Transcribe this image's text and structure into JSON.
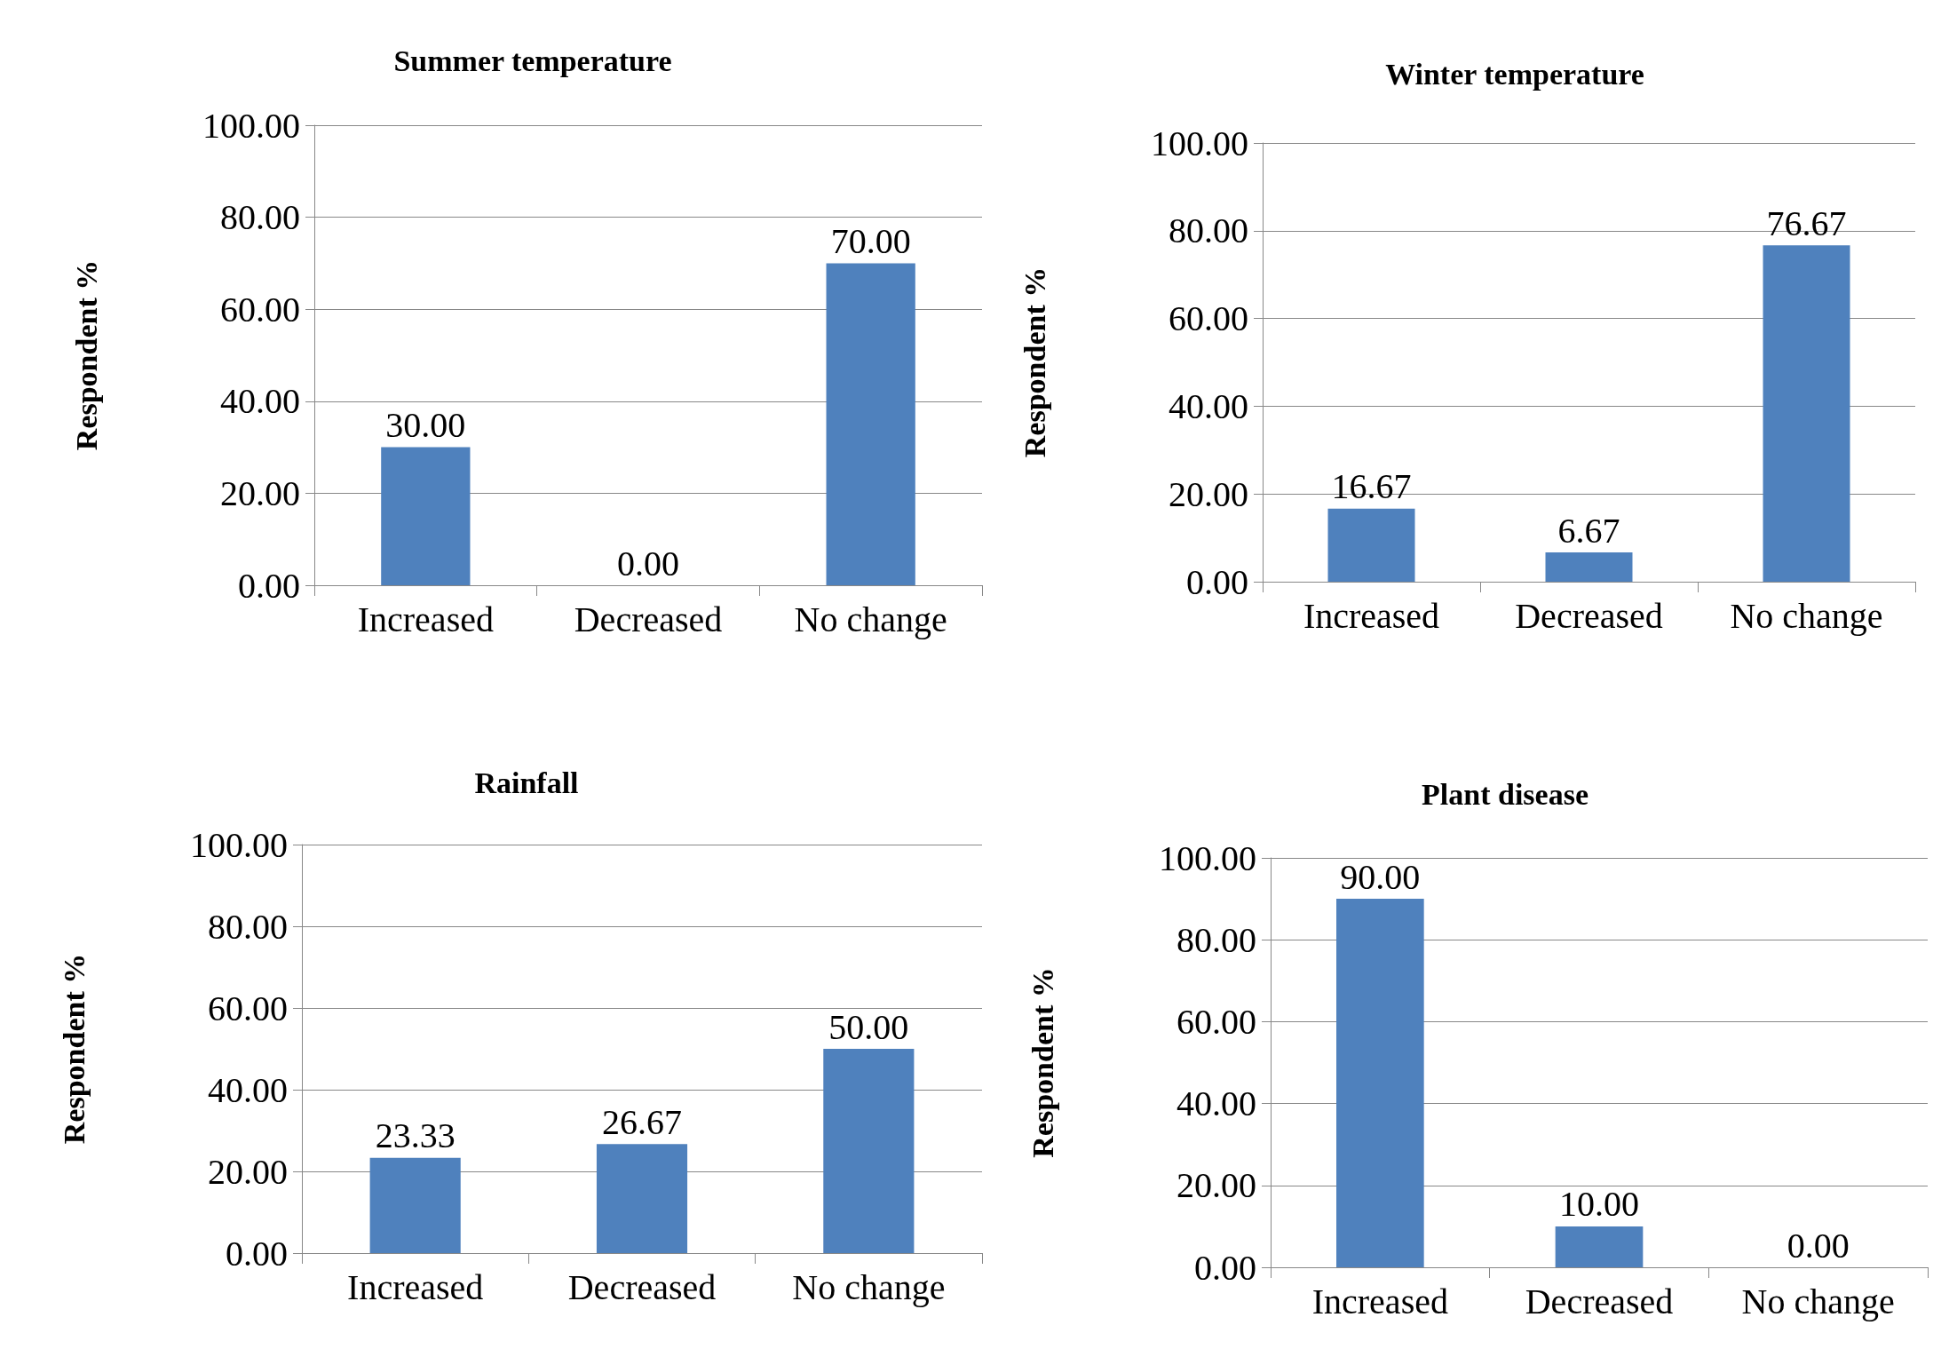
{
  "chart_data": [
    {
      "type": "bar",
      "title": "Summer temperature",
      "ylabel": "Respondent %",
      "categories": [
        "Increased",
        "Decreased",
        "No change"
      ],
      "values": [
        30,
        0,
        70
      ],
      "value_labels": [
        "30.00",
        "0.00",
        "70.00"
      ],
      "color": "#4f81bd",
      "ylim": [
        0,
        100
      ],
      "yticks": [
        {
          "value": 0,
          "label": "0.00"
        },
        {
          "value": 20,
          "label": "20.00"
        },
        {
          "value": 40,
          "label": "40.00"
        },
        {
          "value": 60,
          "label": "60.00"
        },
        {
          "value": 80,
          "label": "80.00"
        },
        {
          "value": 100,
          "label": "100.00"
        }
      ],
      "grid": "y"
    },
    {
      "type": "bar",
      "title": "Winter temperature",
      "ylabel": "Respondent %",
      "categories": [
        "Increased",
        "Decreased",
        "No change"
      ],
      "values": [
        16.67,
        6.67,
        76.67
      ],
      "value_labels": [
        "16.67",
        "6.67",
        "76.67"
      ],
      "color": "#4f81bd",
      "ylim": [
        0,
        100
      ],
      "yticks": [
        {
          "value": 0,
          "label": "0.00"
        },
        {
          "value": 20,
          "label": "20.00"
        },
        {
          "value": 40,
          "label": "40.00"
        },
        {
          "value": 60,
          "label": "60.00"
        },
        {
          "value": 80,
          "label": "80.00"
        },
        {
          "value": 100,
          "label": "100.00"
        }
      ],
      "grid": "y"
    },
    {
      "type": "bar",
      "title": "Rainfall",
      "ylabel": "Respondent %",
      "categories": [
        "Increased",
        "Decreased",
        "No change"
      ],
      "values": [
        23.33,
        26.67,
        50
      ],
      "value_labels": [
        "23.33",
        "26.67",
        "50.00"
      ],
      "color": "#4f81bd",
      "ylim": [
        0,
        100
      ],
      "yticks": [
        {
          "value": 0,
          "label": "0.00"
        },
        {
          "value": 20,
          "label": "20.00"
        },
        {
          "value": 40,
          "label": "40.00"
        },
        {
          "value": 60,
          "label": "60.00"
        },
        {
          "value": 80,
          "label": "80.00"
        },
        {
          "value": 100,
          "label": "100.00"
        }
      ],
      "grid": "y"
    },
    {
      "type": "bar",
      "title": "Plant disease",
      "ylabel": "Respondent %",
      "categories": [
        "Increased",
        "Decreased",
        "No change"
      ],
      "values": [
        90,
        10,
        0
      ],
      "value_labels": [
        "90.00",
        "10.00",
        "0.00"
      ],
      "color": "#4f81bd",
      "ylim": [
        0,
        100
      ],
      "yticks": [
        {
          "value": 0,
          "label": "0.00"
        },
        {
          "value": 20,
          "label": "20.00"
        },
        {
          "value": 40,
          "label": "40.00"
        },
        {
          "value": 60,
          "label": "60.00"
        },
        {
          "value": 80,
          "label": "80.00"
        },
        {
          "value": 100,
          "label": "100.00"
        }
      ],
      "grid": "y"
    }
  ]
}
